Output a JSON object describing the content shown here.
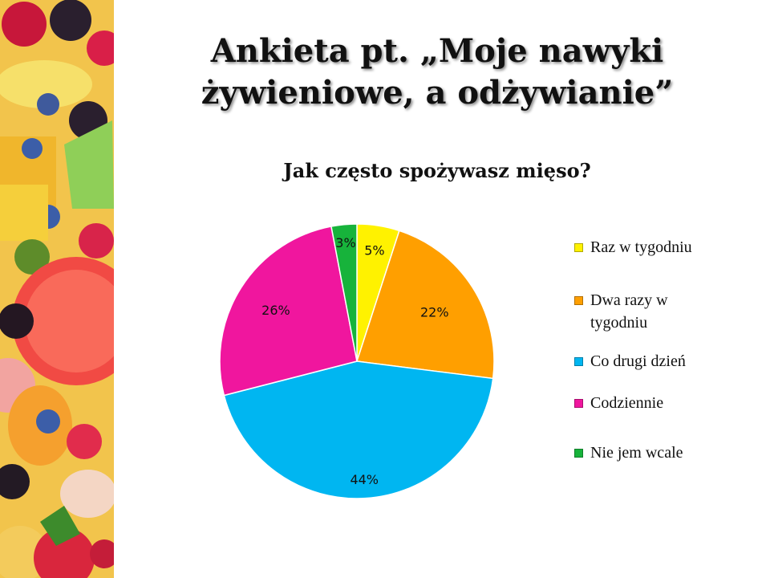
{
  "slide_title": "Ankieta pt. „Moje nawyki żywieniowe, a odżywianie”",
  "chart_data": {
    "type": "pie",
    "title": "Jak często spożywasz mięso?",
    "legend_position": "right",
    "slices": [
      {
        "label": "Raz w tygodniu",
        "value": 5,
        "display": "5%",
        "color": "#fff200"
      },
      {
        "label": "Dwa razy w tygodniu",
        "value": 22,
        "display": "22%",
        "color": "#ff9f00"
      },
      {
        "label": "Co drugi dzień",
        "value": 44,
        "display": "44%",
        "color": "#00b6f1"
      },
      {
        "label": "Codziennie",
        "value": 26,
        "display": "26%",
        "color": "#f0169e"
      },
      {
        "label": "Nie jem wcale",
        "value": 3,
        "display": "3%",
        "color": "#17b33b"
      }
    ]
  }
}
